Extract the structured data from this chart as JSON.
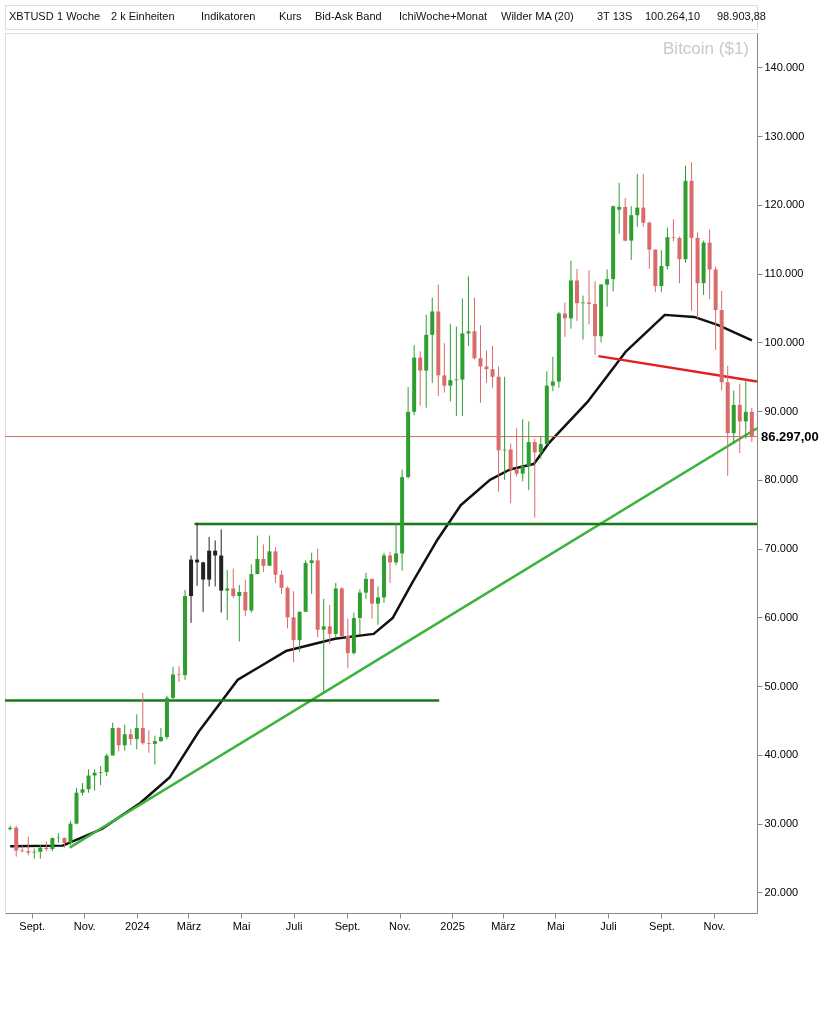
{
  "chart_data": {
    "type": "candlestick",
    "title": "Bitcoin ($1)",
    "annotations": [
      "XBTUSD",
      "1 Woche",
      "2 k Einheiten",
      "Indikatoren",
      "Kurs",
      "Bid-Ask Band",
      "IchiWoche+Monat",
      "Wilder MA (20)",
      "3T 13S",
      "100.264,10",
      "98.903,88"
    ],
    "x": [
      "2023-08-07",
      "2023-08-14",
      "2023-08-21",
      "2023-08-28",
      "2023-09-04",
      "2023-09-11",
      "2023-09-18",
      "2023-09-25",
      "2023-10-02",
      "2023-10-09",
      "2023-10-16",
      "2023-10-23",
      "2023-10-30",
      "2023-11-06",
      "2023-11-13",
      "2023-11-20",
      "2023-11-27",
      "2023-12-04",
      "2023-12-11",
      "2023-12-18",
      "2023-12-25",
      "2024-01-01",
      "2024-01-08",
      "2024-01-15",
      "2024-01-22",
      "2024-01-29",
      "2024-02-05",
      "2024-02-12",
      "2024-02-19",
      "2024-02-26",
      "2024-03-04",
      "2024-03-11",
      "2024-03-18",
      "2024-03-25",
      "2024-04-01",
      "2024-04-08",
      "2024-04-15",
      "2024-04-22",
      "2024-04-29",
      "2024-05-06",
      "2024-05-13",
      "2024-05-20",
      "2024-05-27",
      "2024-06-03",
      "2024-06-10",
      "2024-06-17",
      "2024-06-24",
      "2024-07-01",
      "2024-07-08",
      "2024-07-15",
      "2024-07-22",
      "2024-07-29",
      "2024-08-05",
      "2024-08-12",
      "2024-08-19",
      "2024-08-26",
      "2024-09-02",
      "2024-09-09",
      "2024-09-16",
      "2024-09-23",
      "2024-09-30",
      "2024-10-07",
      "2024-10-14",
      "2024-10-21",
      "2024-10-28",
      "2024-11-04",
      "2024-11-11",
      "2024-11-18",
      "2024-11-25",
      "2024-12-02",
      "2024-12-09",
      "2024-12-16",
      "2024-12-23",
      "2024-12-30",
      "2025-01-06",
      "2025-01-13",
      "2025-01-20",
      "2025-01-27",
      "2025-02-03",
      "2025-02-10",
      "2025-02-17",
      "2025-02-24",
      "2025-03-03",
      "2025-03-10",
      "2025-03-17",
      "2025-03-24",
      "2025-03-31",
      "2025-04-07",
      "2025-04-14",
      "2025-04-21",
      "2025-04-28",
      "2025-05-05",
      "2025-05-12",
      "2025-05-19",
      "2025-05-26",
      "2025-06-02",
      "2025-06-09",
      "2025-06-16",
      "2025-06-23",
      "2025-06-30",
      "2025-07-07",
      "2025-07-14",
      "2025-07-21",
      "2025-07-28",
      "2025-08-04",
      "2025-08-11",
      "2025-08-18",
      "2025-08-25",
      "2025-09-01",
      "2025-09-08",
      "2025-09-15",
      "2025-09-22",
      "2025-09-29",
      "2025-10-06",
      "2025-10-13",
      "2025-10-20",
      "2025-10-27",
      "2025-11-03",
      "2025-11-10",
      "2025-11-17",
      "2025-11-24",
      "2025-12-01",
      "2025-12-08",
      "2025-12-15"
    ],
    "ohlc": [
      [
        29200,
        29700,
        29000,
        29400
      ],
      [
        29400,
        29700,
        25200,
        26100
      ],
      [
        26100,
        26800,
        25800,
        26000
      ],
      [
        26000,
        28100,
        25400,
        25800
      ],
      [
        25800,
        26400,
        24900,
        25900
      ],
      [
        25900,
        26900,
        24900,
        26500
      ],
      [
        26500,
        27400,
        26000,
        26300
      ],
      [
        26300,
        28000,
        26000,
        27900
      ],
      [
        27900,
        28600,
        27200,
        27950
      ],
      [
        27900,
        28000,
        26500,
        27200
      ],
      [
        27200,
        30400,
        26900,
        30000
      ],
      [
        30000,
        35200,
        29900,
        34500
      ],
      [
        34500,
        35900,
        34100,
        35000
      ],
      [
        35000,
        37900,
        34500,
        37000
      ],
      [
        37000,
        37900,
        34800,
        37400
      ],
      [
        37400,
        38400,
        35600,
        37500
      ],
      [
        37500,
        40200,
        36900,
        39900
      ],
      [
        39900,
        44700,
        39900,
        43900
      ],
      [
        43900,
        44000,
        40500,
        41400
      ],
      [
        41400,
        44400,
        40600,
        43000
      ],
      [
        43000,
        43800,
        41400,
        42300
      ],
      [
        42300,
        45900,
        40800,
        43900
      ],
      [
        43900,
        49000,
        41500,
        41700
      ],
      [
        41700,
        43600,
        40300,
        41600
      ],
      [
        41600,
        42800,
        38600,
        42000
      ],
      [
        42000,
        43900,
        41900,
        42600
      ],
      [
        42600,
        48600,
        42300,
        48300
      ],
      [
        48300,
        52800,
        47700,
        51700
      ],
      [
        51700,
        52900,
        50600,
        51600
      ],
      [
        51600,
        64000,
        50900,
        63100
      ],
      [
        63100,
        69000,
        59200,
        68400
      ],
      [
        68400,
        73800,
        64600,
        68000
      ],
      [
        68000,
        68100,
        60800,
        65500
      ],
      [
        65500,
        71700,
        64500,
        69700
      ],
      [
        69700,
        71200,
        64500,
        69000
      ],
      [
        69000,
        72800,
        60700,
        63900
      ],
      [
        63900,
        66900,
        59600,
        64200
      ],
      [
        64200,
        67100,
        62800,
        63100
      ],
      [
        63100,
        64700,
        56500,
        63700
      ],
      [
        63700,
        65500,
        60200,
        61000
      ],
      [
        61000,
        67700,
        60700,
        66300
      ],
      [
        66300,
        71900,
        66300,
        68500
      ],
      [
        68500,
        70600,
        66600,
        67500
      ],
      [
        67500,
        71900,
        67500,
        69600
      ],
      [
        69600,
        70200,
        65000,
        66200
      ],
      [
        66200,
        66800,
        63400,
        64300
      ],
      [
        64300,
        64500,
        58400,
        60000
      ],
      [
        60000,
        63800,
        53500,
        56700
      ],
      [
        56700,
        60900,
        55000,
        60800
      ],
      [
        60800,
        68300,
        60800,
        67900
      ],
      [
        67900,
        69400,
        63400,
        68300
      ],
      [
        68300,
        70000,
        57100,
        58200
      ],
      [
        58200,
        62700,
        49100,
        58700
      ],
      [
        58700,
        61800,
        56100,
        57600
      ],
      [
        57600,
        65000,
        57000,
        64200
      ],
      [
        64200,
        64400,
        57200,
        57300
      ],
      [
        57300,
        59800,
        52600,
        54800
      ],
      [
        54800,
        60700,
        54600,
        59900
      ],
      [
        59900,
        64100,
        57500,
        63600
      ],
      [
        63600,
        66500,
        62700,
        65600
      ],
      [
        65600,
        65600,
        59800,
        62000
      ],
      [
        62000,
        64500,
        58900,
        62900
      ],
      [
        62900,
        69400,
        62100,
        69000
      ],
      [
        69000,
        69500,
        65000,
        68000
      ],
      [
        68000,
        73600,
        67600,
        69300
      ],
      [
        69300,
        81500,
        66800,
        80400
      ],
      [
        80400,
        93500,
        80200,
        89900
      ],
      [
        89900,
        99600,
        89400,
        97800
      ],
      [
        97800,
        98700,
        90800,
        95900
      ],
      [
        95900,
        104000,
        90500,
        101100
      ],
      [
        101100,
        106500,
        94100,
        104500
      ],
      [
        104500,
        108400,
        92200,
        95200
      ],
      [
        95200,
        99900,
        92700,
        93700
      ],
      [
        93700,
        102700,
        91400,
        94500
      ],
      [
        94500,
        102300,
        89300,
        94600
      ],
      [
        94600,
        106400,
        89300,
        101300
      ],
      [
        101300,
        109600,
        99500,
        101600
      ],
      [
        101600,
        106500,
        97500,
        97700
      ],
      [
        97700,
        102500,
        91200,
        96500
      ],
      [
        96500,
        98800,
        94100,
        96100
      ],
      [
        96100,
        99500,
        93400,
        95000
      ],
      [
        95000,
        96500,
        78300,
        84300
      ],
      [
        84300,
        95000,
        80000,
        84400
      ],
      [
        84400,
        85300,
        76600,
        81500
      ],
      [
        81500,
        87500,
        80500,
        80900
      ],
      [
        80900,
        88800,
        79800,
        82000
      ],
      [
        82000,
        88500,
        78500,
        85500
      ],
      [
        85500,
        86000,
        74500,
        84000
      ],
      [
        84000,
        86400,
        83100,
        85200
      ],
      [
        85200,
        95800,
        85100,
        93700
      ],
      [
        93700,
        97900,
        92900,
        94300
      ],
      [
        94300,
        104400,
        93400,
        104200
      ],
      [
        104200,
        105800,
        100800,
        103500
      ],
      [
        103500,
        111900,
        102000,
        109000
      ],
      [
        109000,
        110700,
        103100,
        105700
      ],
      [
        105700,
        106800,
        100400,
        105800
      ],
      [
        105800,
        110500,
        102600,
        105600
      ],
      [
        105600,
        108900,
        98200,
        100900
      ],
      [
        100900,
        108500,
        100000,
        108400
      ],
      [
        108400,
        110600,
        105200,
        109200
      ],
      [
        109200,
        119900,
        107400,
        119800
      ],
      [
        119300,
        123200,
        115800,
        119700
      ],
      [
        119700,
        121000,
        114700,
        114800
      ],
      [
        114800,
        119800,
        112000,
        118500
      ],
      [
        118500,
        124500,
        116800,
        119600
      ],
      [
        119600,
        124500,
        116800,
        117400
      ],
      [
        117400,
        117600,
        110700,
        113500
      ],
      [
        113500,
        113500,
        107300,
        108200
      ],
      [
        108200,
        113400,
        107300,
        111100
      ],
      [
        111100,
        116700,
        110600,
        115300
      ],
      [
        115300,
        117900,
        114700,
        115200
      ],
      [
        115200,
        115400,
        108600,
        112100
      ],
      [
        112100,
        125700,
        111600,
        123500
      ],
      [
        123500,
        126200,
        104600,
        115200
      ],
      [
        115200,
        116000,
        103500,
        108600
      ],
      [
        108600,
        114800,
        106900,
        114500
      ],
      [
        114500,
        116400,
        106300,
        110600
      ],
      [
        110600,
        111000,
        98900,
        104700
      ],
      [
        104700,
        107500,
        93000,
        94200
      ],
      [
        94200,
        96600,
        80600,
        86800
      ],
      [
        86800,
        93000,
        85300,
        90900
      ],
      [
        90900,
        94000,
        83900,
        88500
      ],
      [
        88500,
        94500,
        86000,
        89900
      ],
      [
        89900,
        90500,
        85500,
        86297
      ]
    ],
    "colors": [
      "#2e9e2e",
      "#d96b6b",
      "#d96b6b",
      "#d96b6b",
      "#2e9e2e",
      "#2e9e2e",
      "#d96b6b",
      "#2e9e2e",
      "#2e9e2e",
      "#d96b6b",
      "#2e9e2e",
      "#2e9e2e",
      "#2e9e2e",
      "#2e9e2e",
      "#2e9e2e",
      "#2e9e2e",
      "#2e9e2e",
      "#2e9e2e",
      "#d96b6b",
      "#2e9e2e",
      "#d96b6b",
      "#2e9e2e",
      "#d96b6b",
      "#d96b6b",
      "#2e9e2e",
      "#2e9e2e",
      "#2e9e2e",
      "#2e9e2e",
      "#d96b6b",
      "#2e9e2e",
      "#222222",
      "#222222",
      "#222222",
      "#222222",
      "#222222",
      "#222222",
      "#2e9e2e",
      "#d96b6b",
      "#2e9e2e",
      "#d96b6b",
      "#2e9e2e",
      "#2e9e2e",
      "#d96b6b",
      "#2e9e2e",
      "#d96b6b",
      "#d96b6b",
      "#d96b6b",
      "#d96b6b",
      "#2e9e2e",
      "#2e9e2e",
      "#2e9e2e",
      "#d96b6b",
      "#2e9e2e",
      "#d96b6b",
      "#2e9e2e",
      "#d96b6b",
      "#d96b6b",
      "#2e9e2e",
      "#2e9e2e",
      "#2e9e2e",
      "#d96b6b",
      "#2e9e2e",
      "#2e9e2e",
      "#d96b6b",
      "#2e9e2e",
      "#2e9e2e",
      "#2e9e2e",
      "#2e9e2e",
      "#d96b6b",
      "#2e9e2e",
      "#2e9e2e",
      "#d96b6b",
      "#d96b6b",
      "#2e9e2e",
      "#2e9e2e",
      "#2e9e2e",
      "#2e9e2e",
      "#d96b6b",
      "#d96b6b",
      "#d96b6b",
      "#d96b6b",
      "#d96b6b",
      "#2e9e2e",
      "#d96b6b",
      "#d96b6b",
      "#2e9e2e",
      "#2e9e2e",
      "#d96b6b",
      "#2e9e2e",
      "#2e9e2e",
      "#2e9e2e",
      "#2e9e2e",
      "#d96b6b",
      "#2e9e2e",
      "#d96b6b",
      "#2e9e2e",
      "#d96b6b",
      "#d96b6b",
      "#2e9e2e",
      "#2e9e2e",
      "#2e9e2e",
      "#2e9e2e",
      "#d96b6b",
      "#2e9e2e",
      "#2e9e2e",
      "#d96b6b",
      "#d96b6b",
      "#d96b6b",
      "#2e9e2e",
      "#2e9e2e",
      "#d96b6b",
      "#d96b6b",
      "#2e9e2e",
      "#d96b6b",
      "#d96b6b",
      "#2e9e2e",
      "#d96b6b",
      "#d96b6b",
      "#d96b6b",
      "#d96b6b",
      "#2e9e2e",
      "#d96b6b",
      "#2e9e2e",
      "#d96b6b"
    ],
    "series": [
      {
        "type": "line",
        "color": "#111111",
        "x": [
          "2023-08-07",
          "2023-10-07",
          "2023-11-21",
          "2024-01-05",
          "2024-02-08",
          "2024-03-13",
          "2024-04-27",
          "2024-06-22",
          "2024-08-18",
          "2024-10-02",
          "2024-10-24",
          "2024-11-16",
          "2024-12-14",
          "2025-01-11",
          "2025-02-14",
          "2025-03-09",
          "2025-04-06",
          "2025-04-23",
          "2025-06-07",
          "2025-07-22",
          "2025-09-05",
          "2025-10-09",
          "2025-11-06",
          "2025-12-15"
        ],
        "values": [
          26700,
          26800,
          29200,
          33000,
          36700,
          43400,
          50900,
          55100,
          56900,
          57600,
          59900,
          65100,
          71100,
          76300,
          80000,
          81500,
          82300,
          85300,
          91300,
          98700,
          104000,
          103700,
          102500,
          100300
        ]
      },
      {
        "type": "line",
        "color": "#3cb43c",
        "x": [
          "2023-10-15",
          "2025-12-21"
        ],
        "values": [
          26500,
          87500
        ]
      },
      {
        "type": "line",
        "color": "#1a7a1a",
        "x": [
          "2023-08-01",
          "2024-12-17"
        ],
        "values": [
          47900,
          47900
        ]
      },
      {
        "type": "line",
        "color": "#1a7a1a",
        "x": [
          "2024-03-08",
          "2025-12-21"
        ],
        "values": [
          73600,
          73600
        ]
      },
      {
        "type": "line",
        "color": "#e02020",
        "x": [
          "2025-06-20",
          "2025-12-21"
        ],
        "values": [
          98000,
          94300
        ]
      }
    ],
    "ref_lines": [
      {
        "axis": "y",
        "value": 86297,
        "label": "86.297,00",
        "color": "#c87060"
      }
    ],
    "xlim": [
      "2023-08-01",
      "2025-12-21"
    ],
    "xticks": [
      {
        "value": "2023-09-01",
        "label": "Sept."
      },
      {
        "value": "2023-11-01",
        "label": "Nov."
      },
      {
        "value": "2024-01-01",
        "label": "2024"
      },
      {
        "value": "2024-03-01",
        "label": "März"
      },
      {
        "value": "2024-05-01",
        "label": "Mai"
      },
      {
        "value": "2024-07-01",
        "label": "Juli"
      },
      {
        "value": "2024-09-01",
        "label": "Sept."
      },
      {
        "value": "2024-11-01",
        "label": "Nov."
      },
      {
        "value": "2025-01-01",
        "label": "2025"
      },
      {
        "value": "2025-03-01",
        "label": "März"
      },
      {
        "value": "2025-05-01",
        "label": "Mai"
      },
      {
        "value": "2025-07-01",
        "label": "Juli"
      },
      {
        "value": "2025-09-01",
        "label": "Sept."
      },
      {
        "value": "2025-11-01",
        "label": "Nov."
      }
    ],
    "ylim": [
      17000,
      145000
    ],
    "yticks": [
      {
        "value": 20000,
        "label": "20.000"
      },
      {
        "value": 30000,
        "label": "30.000"
      },
      {
        "value": 40000,
        "label": "40.000"
      },
      {
        "value": 50000,
        "label": "50.000"
      },
      {
        "value": 60000,
        "label": "60.000"
      },
      {
        "value": 70000,
        "label": "70.000"
      },
      {
        "value": 80000,
        "label": "80.000"
      },
      {
        "value": 90000,
        "label": "90.000"
      },
      {
        "value": 100000,
        "label": "100.000"
      },
      {
        "value": 110000,
        "label": "110.000"
      },
      {
        "value": 120000,
        "label": "120.000"
      },
      {
        "value": 130000,
        "label": "130.000"
      },
      {
        "value": 140000,
        "label": "140.000"
      }
    ]
  }
}
